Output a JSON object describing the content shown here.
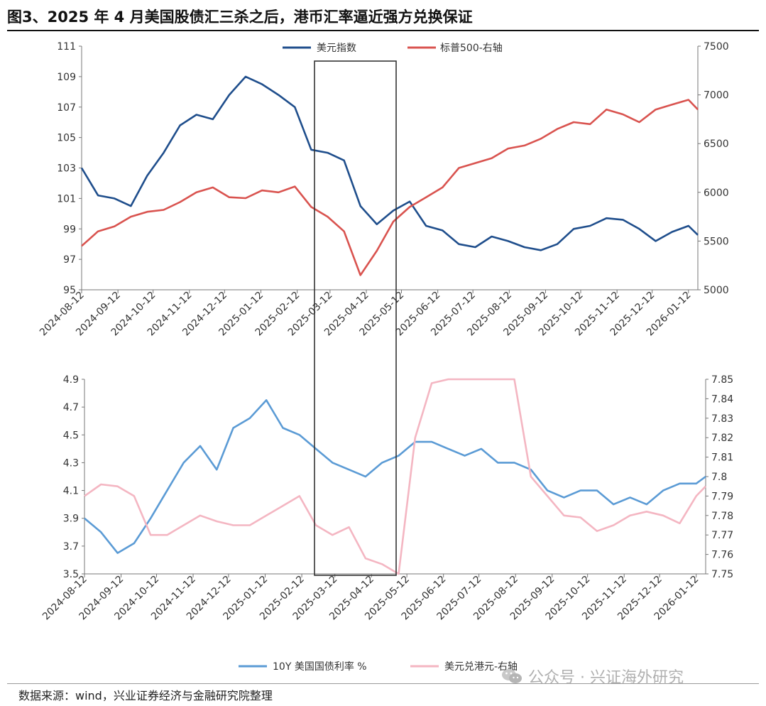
{
  "figure": {
    "title": "图3、2025 年 4 月美国股债汇三杀之后，港币汇率逼近强方兑换保证",
    "source": "数据来源：wind，兴业证券经济与金融研究院整理",
    "watermark": "公众号 · 兴证海外研究"
  },
  "chart_data": [
    {
      "type": "line",
      "x_dates": [
        "2024-08-12",
        "2024-08-26",
        "2024-09-09",
        "2024-09-23",
        "2024-10-07",
        "2024-10-21",
        "2024-11-04",
        "2024-11-18",
        "2024-12-02",
        "2024-12-16",
        "2024-12-30",
        "2025-01-13",
        "2025-01-27",
        "2025-02-10",
        "2025-02-24",
        "2025-03-10",
        "2025-03-24",
        "2025-04-07",
        "2025-04-21",
        "2025-05-05",
        "2025-05-19",
        "2025-06-02",
        "2025-06-16",
        "2025-06-30",
        "2025-07-14",
        "2025-07-28",
        "2025-08-11",
        "2025-08-25",
        "2025-09-08",
        "2025-09-22",
        "2025-10-06",
        "2025-10-20",
        "2025-11-03",
        "2025-11-17",
        "2025-12-01",
        "2025-12-15",
        "2025-12-29",
        "2026-01-12",
        "2026-01-20"
      ],
      "x_tick_labels": [
        "2024-08-12",
        "2024-09-12",
        "2024-10-12",
        "2024-11-12",
        "2024-12-12",
        "2025-01-12",
        "2025-02-12",
        "2025-03-12",
        "2025-04-12",
        "2025-05-12",
        "2025-06-12",
        "2025-07-12",
        "2025-08-12",
        "2025-09-12",
        "2025-10-12",
        "2025-11-12",
        "2025-12-12",
        "2026-01-12"
      ],
      "left_axis": {
        "ylim": [
          95,
          111
        ],
        "ticks": [
          "95",
          "97",
          "99",
          "101",
          "103",
          "105",
          "107",
          "109",
          "111"
        ]
      },
      "right_axis": {
        "ylim": [
          5000,
          7500
        ],
        "ticks": [
          "5000",
          "5500",
          "6000",
          "6500",
          "7000",
          "7500"
        ]
      },
      "legend_position": "top-center",
      "grid": false,
      "series": [
        {
          "name": "美元指数",
          "axis": "left",
          "color": "#1f4e8c",
          "values": [
            103.0,
            101.2,
            101.0,
            100.5,
            102.5,
            104.0,
            105.8,
            106.5,
            106.2,
            107.8,
            109.0,
            108.5,
            107.8,
            107.0,
            104.2,
            104.0,
            103.5,
            100.5,
            99.3,
            100.2,
            100.8,
            99.2,
            98.9,
            98.0,
            97.8,
            98.5,
            98.2,
            97.8,
            97.6,
            98.0,
            99.0,
            99.2,
            99.7,
            99.6,
            99.0,
            98.2,
            98.8,
            99.2,
            98.6
          ]
        },
        {
          "name": "标普500-右轴",
          "axis": "right",
          "color": "#d9534f",
          "values": [
            5450,
            5600,
            5650,
            5750,
            5800,
            5820,
            5900,
            6000,
            6050,
            5950,
            5940,
            6020,
            6000,
            6060,
            5850,
            5750,
            5600,
            5150,
            5400,
            5700,
            5850,
            5950,
            6050,
            6250,
            6300,
            6350,
            6450,
            6480,
            6550,
            6650,
            6720,
            6700,
            6850,
            6800,
            6720,
            6850,
            6900,
            6950,
            6850
          ]
        }
      ]
    },
    {
      "type": "line",
      "x_dates": [
        "2024-08-12",
        "2024-08-26",
        "2024-09-09",
        "2024-09-23",
        "2024-10-07",
        "2024-10-21",
        "2024-11-04",
        "2024-11-18",
        "2024-12-02",
        "2024-12-16",
        "2024-12-30",
        "2025-01-13",
        "2025-01-27",
        "2025-02-10",
        "2025-02-24",
        "2025-03-10",
        "2025-03-24",
        "2025-04-07",
        "2025-04-21",
        "2025-05-05",
        "2025-05-19",
        "2025-06-02",
        "2025-06-16",
        "2025-06-30",
        "2025-07-14",
        "2025-07-28",
        "2025-08-11",
        "2025-08-25",
        "2025-09-08",
        "2025-09-22",
        "2025-10-06",
        "2025-10-20",
        "2025-11-03",
        "2025-11-17",
        "2025-12-01",
        "2025-12-15",
        "2025-12-29",
        "2026-01-12",
        "2026-01-20"
      ],
      "x_tick_labels": [
        "2024-08-12",
        "2024-09-12",
        "2024-10-12",
        "2024-11-12",
        "2024-12-12",
        "2025-01-12",
        "2025-02-12",
        "2025-03-12",
        "2025-04-12",
        "2025-05-12",
        "2025-06-12",
        "2025-07-12",
        "2025-08-12",
        "2025-09-12",
        "2025-10-12",
        "2025-11-12",
        "2025-12-12",
        "2026-01-12"
      ],
      "left_axis": {
        "ylim": [
          3.5,
          4.9
        ],
        "ticks": [
          "3.5",
          "3.7",
          "3.9",
          "4.1",
          "4.3",
          "4.5",
          "4.7",
          "4.9"
        ]
      },
      "right_axis": {
        "ylim": [
          7.75,
          7.85
        ],
        "ticks": [
          "7.75",
          "7.76",
          "7.77",
          "7.78",
          "7.79",
          "7.8",
          "7.81",
          "7.82",
          "7.83",
          "7.84",
          "7.85"
        ]
      },
      "legend_position": "bottom-center",
      "grid": false,
      "series": [
        {
          "name": "10Y 美国国债利率 %",
          "axis": "left",
          "color": "#5b9bd5",
          "values": [
            3.9,
            3.8,
            3.65,
            3.72,
            3.9,
            4.1,
            4.3,
            4.42,
            4.25,
            4.55,
            4.62,
            4.75,
            4.55,
            4.5,
            4.4,
            4.3,
            4.25,
            4.2,
            4.3,
            4.35,
            4.45,
            4.45,
            4.4,
            4.35,
            4.4,
            4.3,
            4.3,
            4.25,
            4.1,
            4.05,
            4.1,
            4.1,
            4.0,
            4.05,
            4.0,
            4.1,
            4.15,
            4.15,
            4.2
          ]
        },
        {
          "name": "美元兑港元-右轴",
          "axis": "right",
          "color": "#f4b6c2",
          "values": [
            7.79,
            7.796,
            7.795,
            7.79,
            7.77,
            7.77,
            7.775,
            7.78,
            7.777,
            7.775,
            7.775,
            7.78,
            7.785,
            7.79,
            7.775,
            7.77,
            7.774,
            7.758,
            7.755,
            7.75,
            7.82,
            7.848,
            7.85,
            7.85,
            7.85,
            7.85,
            7.85,
            7.8,
            7.79,
            7.78,
            7.779,
            7.772,
            7.775,
            7.78,
            7.782,
            7.78,
            7.776,
            7.79,
            7.795
          ]
        }
      ]
    }
  ]
}
